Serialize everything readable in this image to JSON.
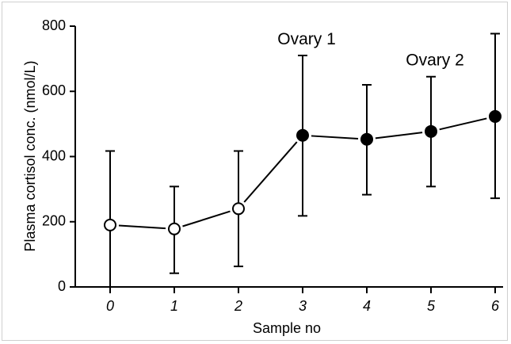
{
  "chart_data": {
    "type": "line",
    "xlabel": "Sample no",
    "ylabel": "Plasma cortisol conc. (nmol/L)",
    "x": [
      0,
      1,
      2,
      3,
      4,
      5,
      6
    ],
    "xticks": [
      "0",
      "1",
      "2",
      "3",
      "4",
      "5",
      "6"
    ],
    "ylim": [
      0,
      800
    ],
    "yticks": [
      "0",
      "200",
      "400",
      "600",
      "800"
    ],
    "series": [
      {
        "values": [
          190,
          178,
          240,
          465,
          453,
          477,
          523
        ],
        "error_low": [
          0,
          42,
          63,
          218,
          283,
          308,
          272
        ],
        "error_high": [
          417,
          308,
          417,
          710,
          620,
          645,
          777
        ],
        "markers": [
          "open",
          "open",
          "open",
          "filled",
          "filled",
          "filled",
          "filled"
        ]
      }
    ],
    "annotations": [
      {
        "text": "Ovary 1",
        "x": 3
      },
      {
        "text": "Ovary 2",
        "x": 5
      }
    ],
    "grid": false,
    "colors": {
      "line": "#000000",
      "open_fill": "#ffffff",
      "filled_fill": "#000000"
    }
  }
}
